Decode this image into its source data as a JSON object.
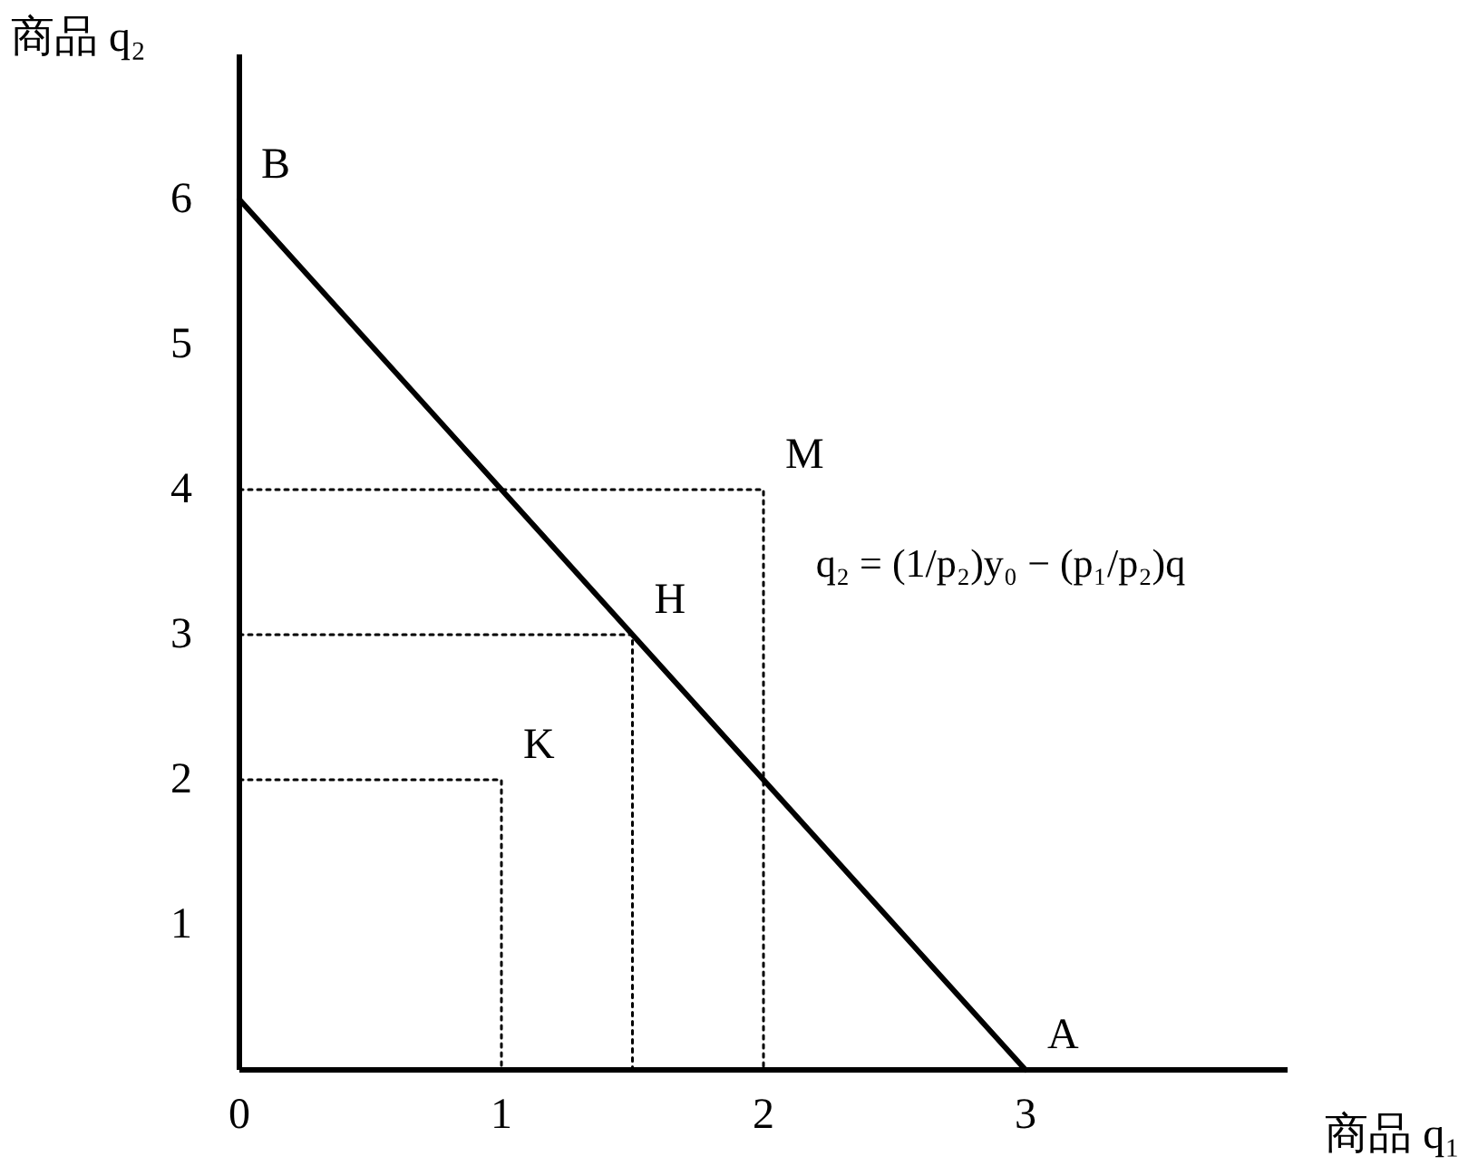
{
  "chart_data": {
    "type": "line",
    "xlabel": "商品 q₁",
    "ylabel": "商品 q₂",
    "xlim": [
      0,
      4
    ],
    "ylim": [
      0,
      7
    ],
    "xticks": [
      0,
      1,
      2,
      3
    ],
    "yticks": [
      1,
      2,
      3,
      4,
      5,
      6
    ],
    "series": [
      {
        "color": "#000000",
        "x": [
          0,
          3
        ],
        "values": [
          6,
          0
        ],
        "line_style": "solid"
      },
      {
        "color": "#000000",
        "x": [
          0,
          2,
          2
        ],
        "values": [
          4,
          4,
          0
        ],
        "line_style": "dotted"
      },
      {
        "color": "#000000",
        "x": [
          0,
          1.5,
          1.5
        ],
        "values": [
          3,
          3,
          0
        ],
        "line_style": "dotted"
      },
      {
        "color": "#000000",
        "x": [
          0,
          1,
          1
        ],
        "values": [
          2,
          2,
          0
        ],
        "line_style": "dotted"
      }
    ],
    "annotations": [
      {
        "text": "B",
        "x": 0,
        "y": 6
      },
      {
        "text": "A",
        "x": 3,
        "y": 0
      },
      {
        "text": "M",
        "x": 2,
        "y": 4
      },
      {
        "text": "H",
        "x": 1.5,
        "y": 3
      },
      {
        "text": "K",
        "x": 1,
        "y": 2
      },
      "q₂ = (1/p₂)y₀ − (p₁/p₂)q"
    ]
  }
}
